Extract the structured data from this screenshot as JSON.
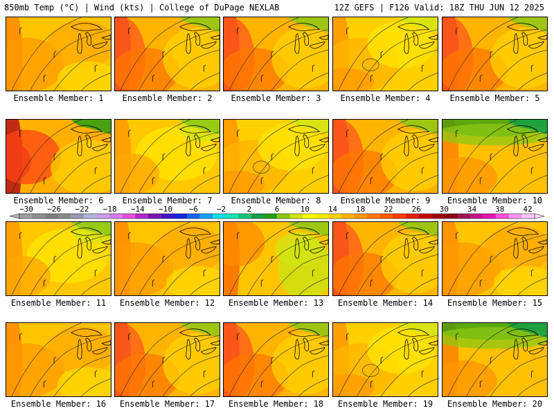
{
  "header": {
    "left": "850mb Temp (°C) | Wind (kts) | College of DuPage NEXLAB",
    "right": "12Z GEFS | F126 Valid: 18Z THU JUN 12 2025"
  },
  "members": [
    {
      "label": "Ensemble Member: 1",
      "theme": "warm"
    },
    {
      "label": "Ensemble Member: 2",
      "theme": "hotwest"
    },
    {
      "label": "Ensemble Member: 3",
      "theme": "hotwest"
    },
    {
      "label": "Ensemble Member: 4",
      "theme": "ring"
    },
    {
      "label": "Ensemble Member: 5",
      "theme": "hotwest"
    },
    {
      "label": "Ensemble Member: 6",
      "theme": "hotcore"
    },
    {
      "label": "Ensemble Member: 7",
      "theme": "mild"
    },
    {
      "label": "Ensemble Member: 8",
      "theme": "ring"
    },
    {
      "label": "Ensemble Member: 9",
      "theme": "hotwest"
    },
    {
      "label": "Ensemble Member: 10",
      "theme": "coolnorth"
    },
    {
      "label": "Ensemble Member: 11",
      "theme": "mild"
    },
    {
      "label": "Ensemble Member: 12",
      "theme": "warm"
    },
    {
      "label": "Ensemble Member: 13",
      "theme": "greeneast"
    },
    {
      "label": "Ensemble Member: 14",
      "theme": "hotwest"
    },
    {
      "label": "Ensemble Member: 15",
      "theme": "warm"
    },
    {
      "label": "Ensemble Member: 16",
      "theme": "warm"
    },
    {
      "label": "Ensemble Member: 17",
      "theme": "hotwest"
    },
    {
      "label": "Ensemble Member: 18",
      "theme": "hotwest"
    },
    {
      "label": "Ensemble Member: 19",
      "theme": "ring"
    },
    {
      "label": "Ensemble Member: 20",
      "theme": "coolnorth"
    }
  ],
  "colorbar": {
    "labels": [
      "−30",
      "−26",
      "−22",
      "−18",
      "−14",
      "−10",
      "−6",
      "−2",
      "2",
      "6",
      "10",
      "14",
      "18",
      "22",
      "26",
      "30",
      "34",
      "38",
      "42"
    ],
    "colors": [
      "#a0a0a0",
      "#909090",
      "#808080",
      "#8c8c8c",
      "#9a9ab4",
      "#b4b4dc",
      "#c8a0e6",
      "#dc78f0",
      "#e650dc",
      "#b428c8",
      "#7814b4",
      "#4814c8",
      "#1428dc",
      "#1464f0",
      "#14a0f0",
      "#14dcf0",
      "#14e6b4",
      "#14c878",
      "#14a046",
      "#28a014",
      "#8cc814",
      "#d2e614",
      "#ffff00",
      "#fff000",
      "#ffd200",
      "#ffb400",
      "#ff9600",
      "#ff7800",
      "#ff5a00",
      "#ff3c00",
      "#e61e00",
      "#c80000",
      "#a00000",
      "#8c0014",
      "#a01450",
      "#c8148c",
      "#e614b4",
      "#ff50dc",
      "#ff96f0",
      "#ffc8ff"
    ]
  }
}
